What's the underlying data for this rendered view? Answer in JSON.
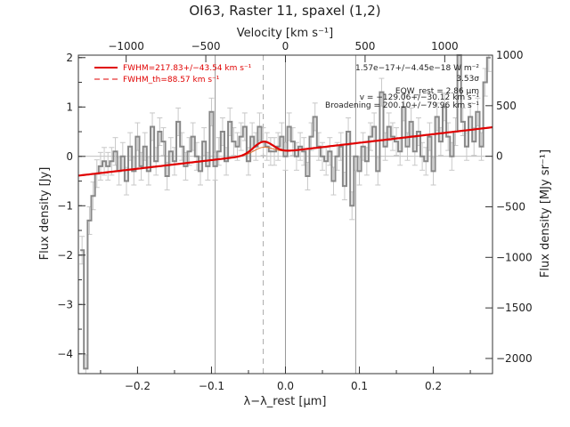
{
  "chart_data": {
    "type": "line",
    "title": "OI63, Raster 11, spaxel (1,2)",
    "xlabel_bottom": "λ−λ_rest [μm]",
    "xlabel_top": "Velocity [km s⁻¹]",
    "ylabel_left": "Flux density [Jy]",
    "ylabel_right": "Flux density [MJy sr⁻¹]",
    "xlim": [
      -0.28,
      0.28
    ],
    "ylim_left": [
      -4.4,
      2.05
    ],
    "ylim_right": [
      -2150,
      1000
    ],
    "top_axis_range": [
      -1300,
      1300
    ],
    "x_ticks": [
      -0.2,
      -0.1,
      0.0,
      0.1,
      0.2
    ],
    "x_tick_labels": [
      "−0.2",
      "−0.1",
      "0.0",
      "0.1",
      "0.2"
    ],
    "y_left_ticks": [
      -4,
      -3,
      -2,
      -1,
      0,
      1,
      2
    ],
    "y_left_tick_labels": [
      "−4",
      "−3",
      "−2",
      "−1",
      "0",
      "1",
      "2"
    ],
    "y_right_ticks": [
      -2000,
      -1500,
      -1000,
      -500,
      0,
      500,
      1000
    ],
    "y_right_tick_labels": [
      "−2000",
      "−1500",
      "−1000",
      "−500",
      "0",
      "500",
      "1000"
    ],
    "top_ticks": [
      -1000,
      -500,
      0,
      500,
      1000
    ],
    "top_tick_labels": [
      "−1000",
      "−500",
      "0",
      "500",
      "1000"
    ],
    "vertical_lines": [
      -0.095,
      0.0,
      0.095
    ],
    "dashed_line": -0.03,
    "legend": [
      {
        "label": "FWHM=217.83+/−43.54 km s⁻¹",
        "style": "solid",
        "color": "#e00000"
      },
      {
        "label": "FWHM_th=88.57 km s⁻¹",
        "style": "dashed",
        "color": "#e00000"
      }
    ],
    "annotations": [
      "1.57e−17+/−4.45e−18 W m⁻²",
      "3.53σ",
      "EQW_rest = 2.86 μm",
      "v = −129.06+/−30.12 km s⁻¹",
      "Broadening = 200.10+/−79.96 km s⁻¹"
    ],
    "series": [
      {
        "name": "spectrum",
        "color": "#888888",
        "x": [
          -0.275,
          -0.27,
          -0.265,
          -0.26,
          -0.255,
          -0.25,
          -0.245,
          -0.24,
          -0.235,
          -0.23,
          -0.225,
          -0.22,
          -0.215,
          -0.21,
          -0.205,
          -0.2,
          -0.195,
          -0.19,
          -0.185,
          -0.18,
          -0.175,
          -0.17,
          -0.165,
          -0.16,
          -0.155,
          -0.15,
          -0.145,
          -0.14,
          -0.135,
          -0.13,
          -0.125,
          -0.12,
          -0.115,
          -0.11,
          -0.105,
          -0.1,
          -0.095,
          -0.09,
          -0.085,
          -0.08,
          -0.075,
          -0.07,
          -0.065,
          -0.06,
          -0.055,
          -0.05,
          -0.045,
          -0.04,
          -0.035,
          -0.03,
          -0.025,
          -0.02,
          -0.015,
          -0.01,
          -0.005,
          0.0,
          0.005,
          0.01,
          0.015,
          0.02,
          0.025,
          0.03,
          0.035,
          0.04,
          0.045,
          0.05,
          0.055,
          0.06,
          0.065,
          0.07,
          0.075,
          0.08,
          0.085,
          0.09,
          0.095,
          0.1,
          0.105,
          0.11,
          0.115,
          0.12,
          0.125,
          0.13,
          0.135,
          0.14,
          0.145,
          0.15,
          0.155,
          0.16,
          0.165,
          0.17,
          0.175,
          0.18,
          0.185,
          0.19,
          0.195,
          0.2,
          0.205,
          0.21,
          0.215,
          0.22,
          0.225,
          0.23,
          0.235,
          0.24,
          0.245,
          0.25,
          0.255,
          0.26,
          0.265,
          0.27,
          0.275
        ],
        "y": [
          -1.9,
          -4.3,
          -1.3,
          -0.8,
          -0.35,
          -0.2,
          -0.1,
          -0.2,
          -0.1,
          0.1,
          -0.3,
          0.0,
          -0.5,
          0.2,
          -0.3,
          0.4,
          -0.2,
          0.2,
          -0.3,
          0.6,
          -0.1,
          0.5,
          0.3,
          -0.4,
          0.1,
          -0.1,
          0.7,
          0.2,
          -0.2,
          0.1,
          0.4,
          0.0,
          -0.3,
          0.3,
          -0.2,
          0.9,
          -0.2,
          0.1,
          0.5,
          -0.1,
          0.7,
          0.3,
          0.2,
          0.4,
          0.6,
          -0.1,
          0.4,
          0.2,
          0.6,
          0.3,
          0.2,
          0.1,
          0.1,
          0.2,
          0.4,
          0.0,
          0.6,
          0.3,
          0.0,
          0.2,
          0.1,
          -0.4,
          0.4,
          0.8,
          0.2,
          0.0,
          -0.1,
          0.1,
          -0.5,
          0.0,
          0.2,
          -0.6,
          0.5,
          -1.0,
          0.0,
          -0.3,
          0.2,
          -0.1,
          0.4,
          0.6,
          -0.3,
          1.3,
          0.2,
          0.6,
          0.4,
          0.3,
          0.1,
          1.0,
          0.2,
          0.7,
          0.1,
          0.5,
          0.0,
          -0.1,
          0.4,
          -0.3,
          0.8,
          0.3,
          1.0,
          0.4,
          0.0,
          0.5,
          2.1,
          0.7,
          0.2,
          0.8,
          0.3,
          0.9,
          0.2,
          1.5,
          2.0
        ],
        "err": 0.28
      },
      {
        "name": "fit",
        "color": "#e00000",
        "continuum_slope": 1.75,
        "continuum_intercept": 0.1,
        "gaussian_center": -0.03,
        "gaussian_amplitude": 0.25,
        "gaussian_sigma": 0.013
      }
    ]
  }
}
